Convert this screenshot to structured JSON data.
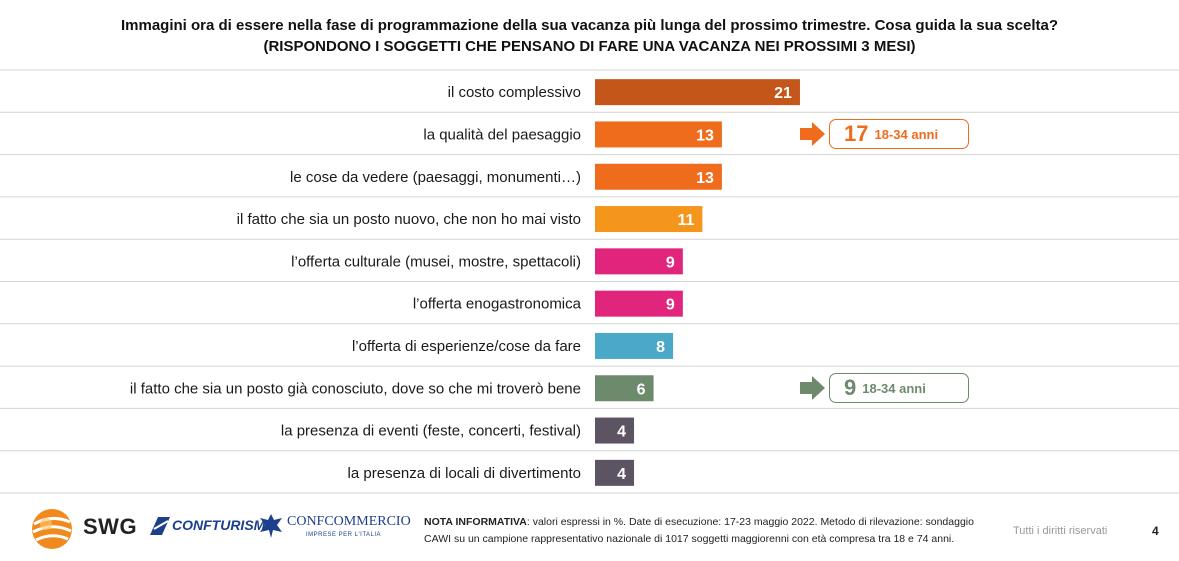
{
  "title_line1": "Immagini ora di essere nella fase di programmazione della sua vacanza più lunga del prossimo trimestre. Cosa guida la sua scelta?",
  "title_line2": "(RISPONDONO I SOGGETTI CHE PENSANO DI FARE UNA VACANZA NEI PROSSIMI 3 MESI)",
  "chart_data": {
    "type": "bar",
    "orientation": "horizontal",
    "categories": [
      "il costo complessivo",
      "la qualità del paesaggio",
      "le cose da vedere (paesaggi, monumenti…)",
      "il fatto che sia un posto nuovo,  che non ho mai visto",
      "l’offerta culturale (musei, mostre, spettacoli)",
      "l’offerta enogastronomica",
      "l’offerta di esperienze/cose da fare",
      "il fatto che sia un posto già conosciuto, dove so che mi troverò bene",
      "la presenza di eventi (feste, concerti, festival)",
      "la presenza di locali di divertimento"
    ],
    "values": [
      21,
      13,
      13,
      11,
      9,
      9,
      8,
      6,
      4,
      4
    ],
    "value_labels": [
      "21",
      "13",
      "13",
      "11",
      "9",
      "9",
      "8",
      "6",
      "4",
      "4"
    ],
    "colors": [
      "#c5561a",
      "#ee6c1c",
      "#ee6c1c",
      "#f4951c",
      "#e2257c",
      "#e2257c",
      "#4aa8c8",
      "#6e8a6c",
      "#5c5363",
      "#5c5363"
    ],
    "xlim": [
      0,
      21
    ],
    "grid": false,
    "annotations": [
      {
        "row": 1,
        "value": "17",
        "label": "18-34 anni",
        "color": "#ee6c1c"
      },
      {
        "row": 7,
        "value": "9",
        "label": "18-34 anni",
        "color": "#6e8a6c"
      }
    ]
  },
  "footer": {
    "note_label": "NOTA INFORMATIVA",
    "note_line1": ": valori espressi in %. Date di esecuzione: 17-23 maggio 2022. Metodo di rilevazione: sondaggio",
    "note_line2": "CAWI su un campione rappresentativo nazionale di 1017 soggetti maggiorenni con età compresa tra 18 e 74 anni.",
    "rights": "Tutti i diritti riservati",
    "page_number": "4"
  },
  "logos": {
    "swg": "SWG",
    "confturismo": "CONFTURISMO",
    "confcommercio": "CONFCOMMERCIO",
    "confcommercio_sub": "IMPRESE PER L'ITALIA"
  }
}
